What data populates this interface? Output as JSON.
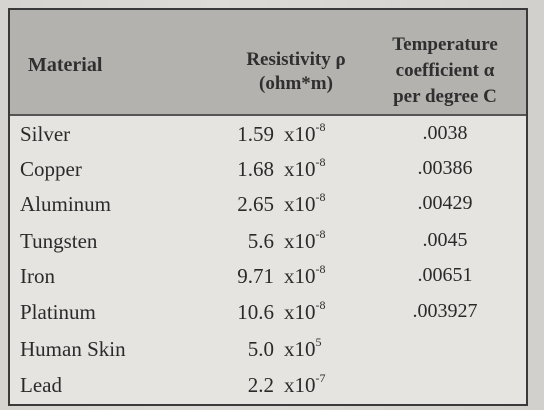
{
  "headers": {
    "material": "Material",
    "resistivity_line1": "Resistivity ρ",
    "resistivity_line2": "(ohm*m)",
    "temp_line1": "Temperature",
    "temp_line2": "coefficient α",
    "temp_line3": "per degree C"
  },
  "rows": [
    {
      "material": "Silver",
      "coefficient": "1.59",
      "base": "x10",
      "exponent": "-8",
      "temp_coef": ".0038"
    },
    {
      "material": "Copper",
      "coefficient": "1.68",
      "base": "x10",
      "exponent": "-8",
      "temp_coef": ".00386"
    },
    {
      "material": "Aluminum",
      "coefficient": "2.65",
      "base": "x10",
      "exponent": "-8",
      "temp_coef": ".00429"
    },
    {
      "material": "Tungsten",
      "coefficient": "5.6",
      "base": "x10",
      "exponent": "-8",
      "temp_coef": ".0045"
    },
    {
      "material": "Iron",
      "coefficient": "9.71",
      "base": "x10",
      "exponent": "-8",
      "temp_coef": ".00651"
    },
    {
      "material": "Platinum",
      "coefficient": "10.6",
      "base": "x10",
      "exponent": "-8",
      "temp_coef": ".003927"
    },
    {
      "material": "Human Skin",
      "coefficient": "5.0",
      "base": "x10",
      "exponent": "5",
      "temp_coef": ""
    },
    {
      "material": "Lead",
      "coefficient": "2.2",
      "base": "x10",
      "exponent": "-7",
      "temp_coef": ""
    }
  ]
}
